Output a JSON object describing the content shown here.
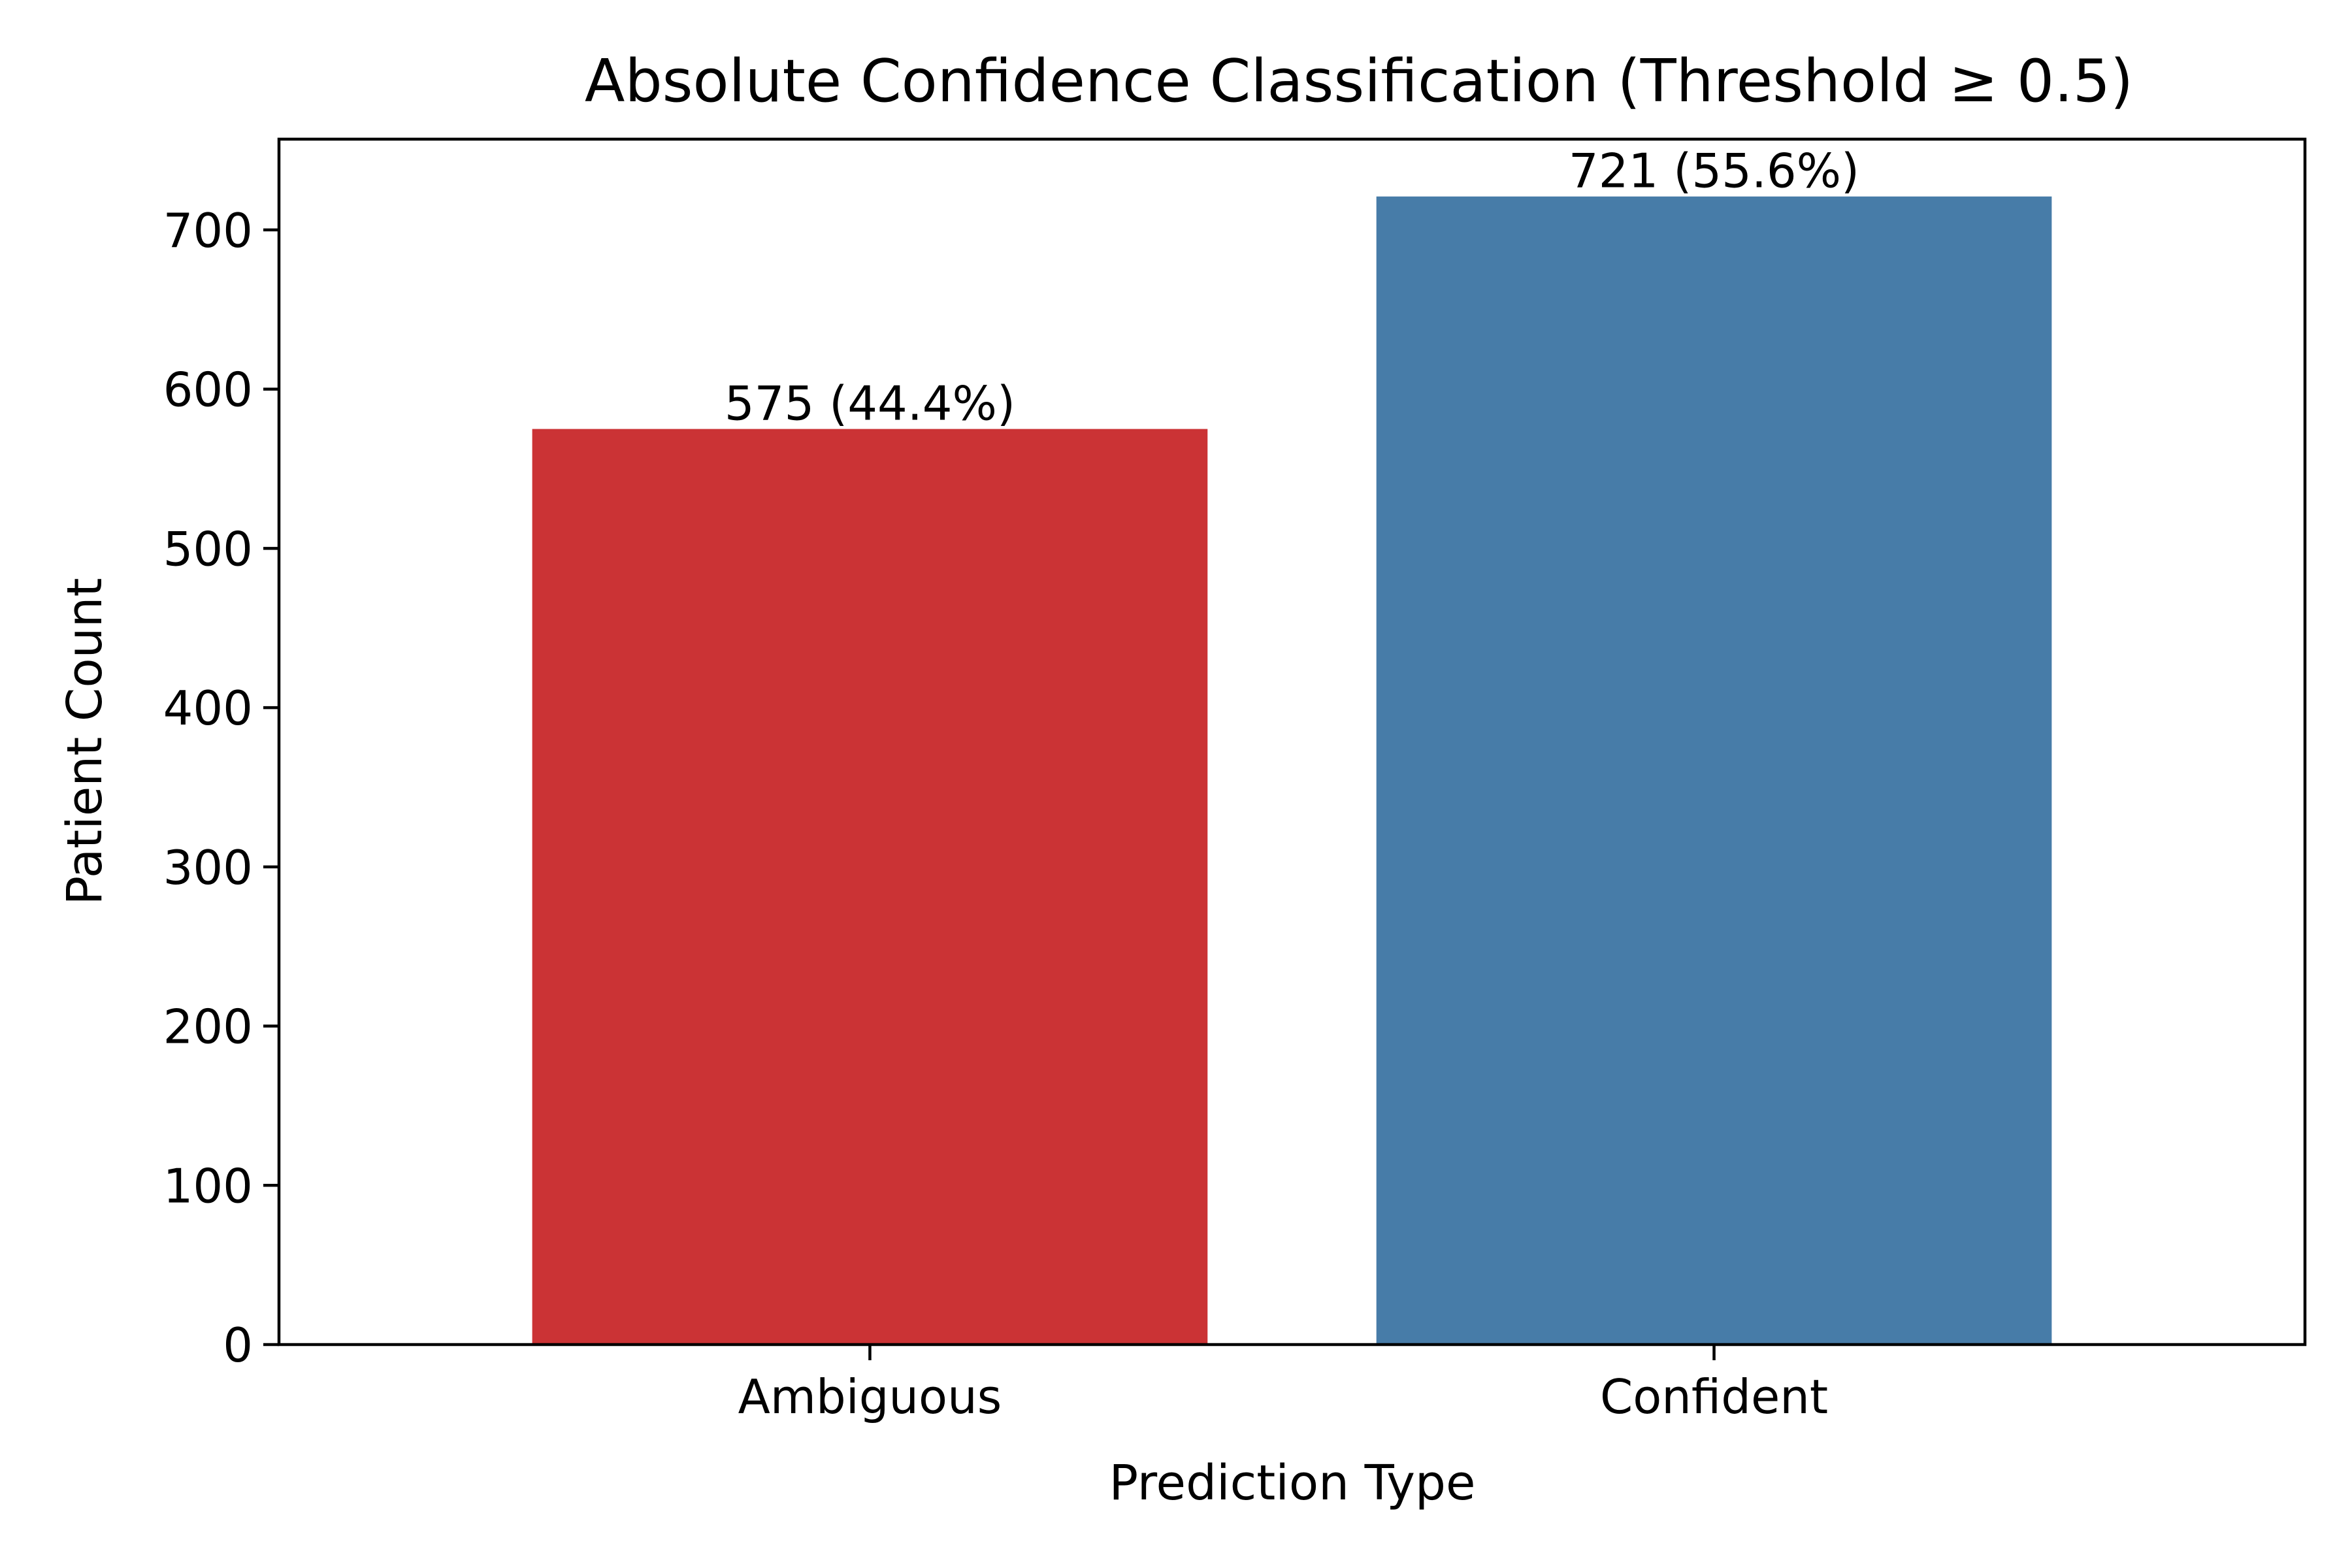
{
  "chart_data": {
    "type": "bar",
    "title": "Absolute Confidence Classification (Threshold ≥ 0.5)",
    "xlabel": "Prediction Type",
    "ylabel": "Patient Count",
    "categories": [
      "Ambiguous",
      "Confident"
    ],
    "values": [
      575,
      721
    ],
    "bar_labels": [
      "575 (44.4%)",
      "721 (55.6%)"
    ],
    "colors": [
      "#cb3335",
      "#477ca8"
    ],
    "ylim": [
      0,
      757
    ],
    "yticks": [
      0,
      100,
      200,
      300,
      400,
      500,
      600,
      700
    ],
    "grid": false,
    "legend": false
  }
}
